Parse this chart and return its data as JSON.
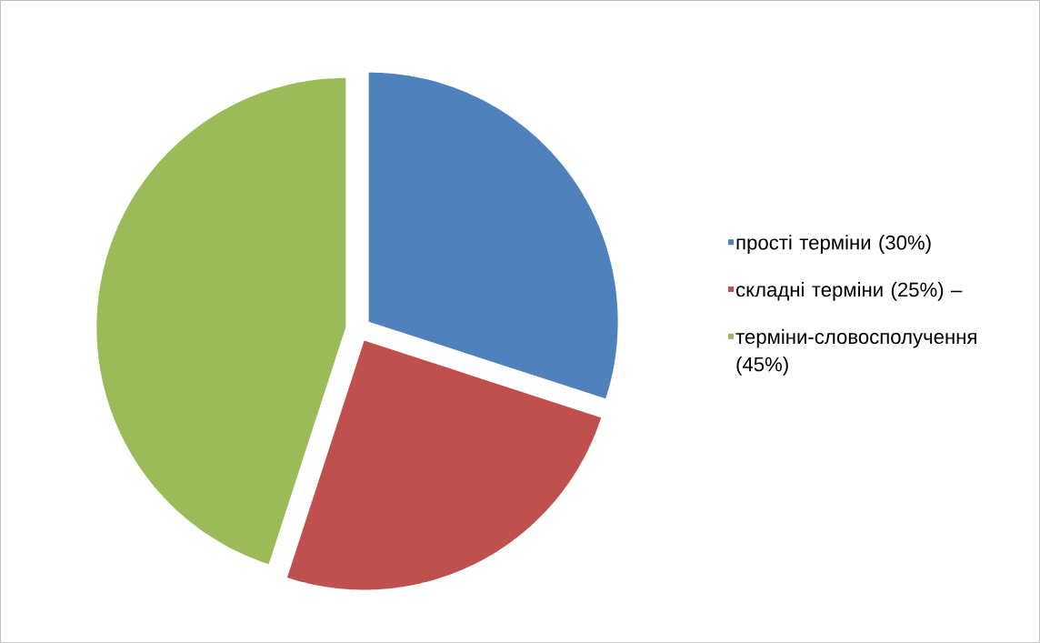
{
  "chart_data": {
    "type": "pie",
    "categories": [
      "прості терміни (30%)",
      "складні терміни (25%) –",
      "терміни-словосполучення (45%)"
    ],
    "values": [
      30,
      25,
      45
    ],
    "colors": [
      "#4f81bd",
      "#c0504d",
      "#9bbb59"
    ],
    "legend": "right"
  }
}
